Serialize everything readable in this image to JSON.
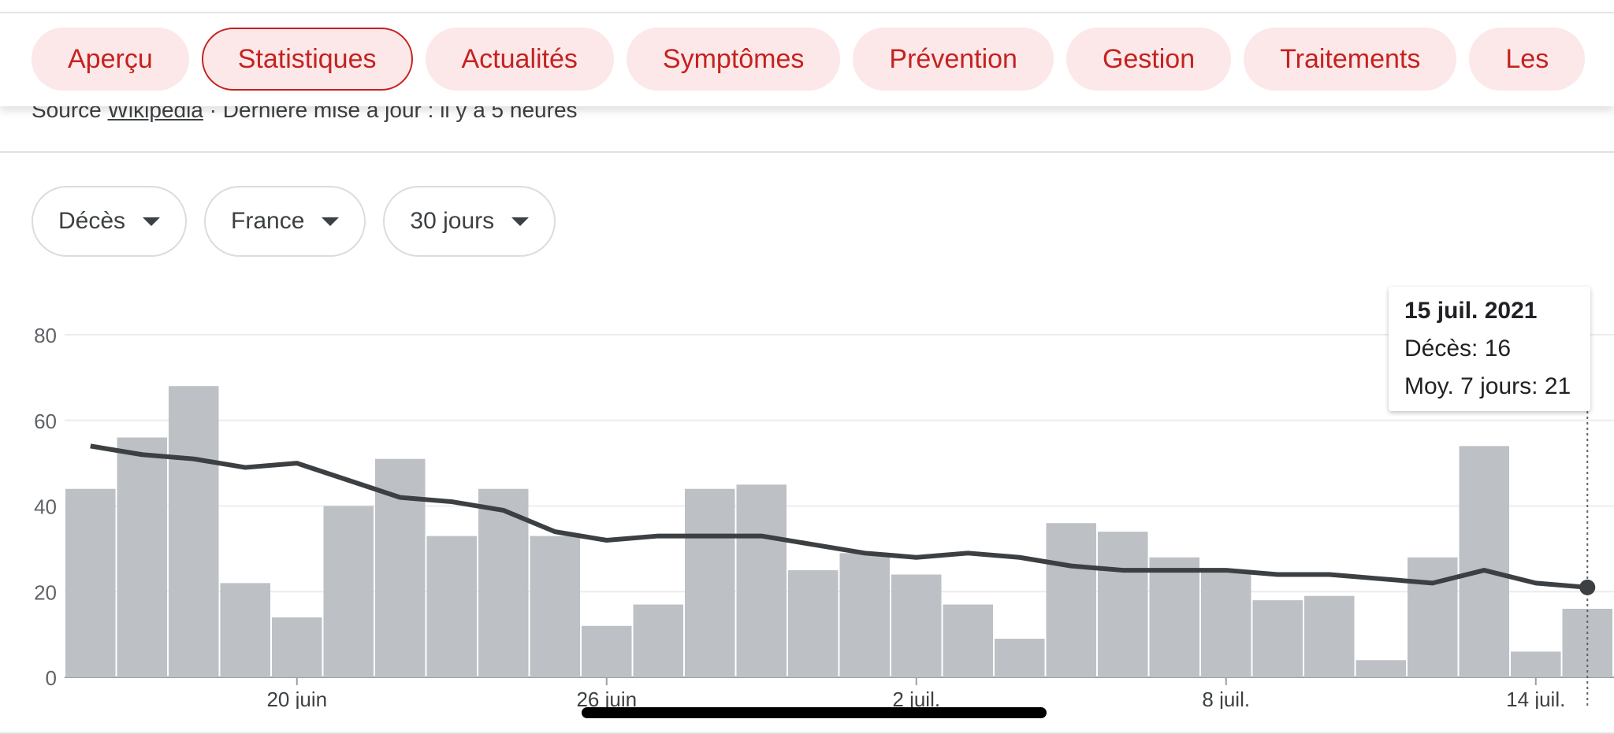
{
  "source": {
    "prefix": "Source",
    "link": "Wikipedia",
    "updated": "· Dernière mise à jour : il y a 5 heures"
  },
  "tabs": [
    {
      "label": "Aperçu",
      "active": false
    },
    {
      "label": "Statistiques",
      "active": true
    },
    {
      "label": "Actualités",
      "active": false
    },
    {
      "label": "Symptômes",
      "active": false
    },
    {
      "label": "Prévention",
      "active": false
    },
    {
      "label": "Gestion",
      "active": false
    },
    {
      "label": "Traitements",
      "active": false
    },
    {
      "label": "Les",
      "active": false
    }
  ],
  "filters": {
    "metric": "Décès",
    "region": "France",
    "period": "30 jours"
  },
  "colors": {
    "bar": "#bdc1c6",
    "line": "#3c4043",
    "accent": "#c5221f",
    "tab_bg": "#fce8e9"
  },
  "tooltip": {
    "date": "15 juil. 2021",
    "deaths": "Décès: 16",
    "avg": "Moy. 7 jours: 21"
  },
  "chart_data": {
    "type": "bar",
    "ylim": [
      0,
      80
    ],
    "yticks": [
      "0",
      "20",
      "40",
      "60",
      "80"
    ],
    "x_tick_labels": [
      {
        "label": "20 juin",
        "index": 4.5
      },
      {
        "label": "26 juin",
        "index": 10.5
      },
      {
        "label": "2 juil.",
        "index": 16.5
      },
      {
        "label": "8 juil.",
        "index": 22.5
      },
      {
        "label": "14 juil.",
        "index": 28.5
      }
    ],
    "series": [
      {
        "values": [
          44,
          56,
          68,
          22,
          14,
          40,
          51,
          33,
          44,
          33,
          12,
          17,
          44,
          45,
          25,
          29,
          24,
          17,
          9,
          36,
          34,
          28,
          25,
          18,
          19,
          4,
          28,
          54,
          6,
          16
        ]
      },
      {
        "values": [
          54,
          52,
          51,
          49,
          50,
          46,
          42,
          41,
          39,
          34,
          32,
          33,
          33,
          33,
          31,
          29,
          28,
          29,
          28,
          26,
          25,
          25,
          25,
          24,
          24,
          23,
          22,
          25,
          22,
          21
        ]
      }
    ],
    "highlight_index": 29
  }
}
